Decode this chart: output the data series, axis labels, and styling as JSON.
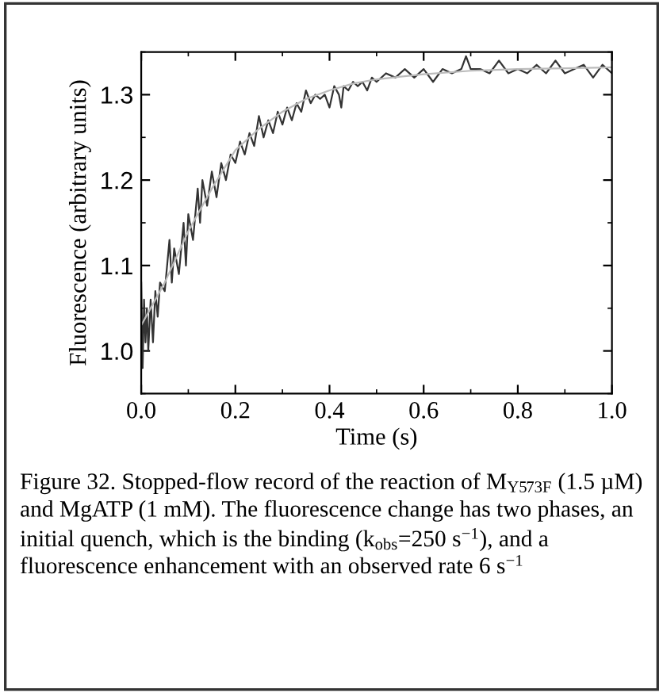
{
  "chart_data": {
    "type": "line",
    "xlabel": "Time (s)",
    "ylabel": "Fluorescence (arbitrary units)",
    "xlim": [
      0.0,
      1.0
    ],
    "xticks": [
      {
        "value": 0,
        "label": "0.0"
      },
      0.2,
      0.4,
      0.6,
      0.8,
      {
        "value": 1,
        "label": "1.0"
      }
    ],
    "ylim": [
      0.95,
      1.35
    ],
    "yticks": [
      {
        "value": 1,
        "label": "1.0"
      },
      1.1,
      1.2,
      1.3
    ],
    "grid": false,
    "legend": false,
    "marker": "none",
    "line_style": "solid",
    "series": [
      {
        "color": "#333333",
        "x": [
          0.0,
          0.003,
          0.006,
          0.009,
          0.012,
          0.015,
          0.02,
          0.025,
          0.03,
          0.035,
          0.04,
          0.05,
          0.06,
          0.065,
          0.07,
          0.08,
          0.09,
          0.095,
          0.1,
          0.11,
          0.12,
          0.125,
          0.13,
          0.14,
          0.15,
          0.16,
          0.17,
          0.18,
          0.19,
          0.2,
          0.21,
          0.22,
          0.23,
          0.24,
          0.25,
          0.26,
          0.27,
          0.28,
          0.29,
          0.3,
          0.31,
          0.32,
          0.33,
          0.34,
          0.35,
          0.36,
          0.37,
          0.38,
          0.39,
          0.4,
          0.41,
          0.42,
          0.425,
          0.43,
          0.44,
          0.45,
          0.46,
          0.47,
          0.48,
          0.49,
          0.5,
          0.52,
          0.54,
          0.56,
          0.58,
          0.6,
          0.62,
          0.64,
          0.66,
          0.68,
          0.69,
          0.7,
          0.72,
          0.74,
          0.76,
          0.78,
          0.8,
          0.82,
          0.84,
          0.86,
          0.88,
          0.9,
          0.92,
          0.94,
          0.96,
          0.98,
          1.0
        ],
        "values": [
          1.08,
          0.98,
          1.06,
          1.01,
          1.05,
          1.0,
          1.06,
          1.01,
          1.07,
          1.04,
          1.08,
          1.07,
          1.13,
          1.08,
          1.12,
          1.09,
          1.15,
          1.1,
          1.16,
          1.13,
          1.19,
          1.15,
          1.2,
          1.17,
          1.21,
          1.18,
          1.22,
          1.2,
          1.23,
          1.22,
          1.245,
          1.23,
          1.255,
          1.24,
          1.275,
          1.25,
          1.27,
          1.255,
          1.28,
          1.265,
          1.285,
          1.27,
          1.29,
          1.28,
          1.305,
          1.29,
          1.3,
          1.295,
          1.3,
          1.285,
          1.31,
          1.3,
          1.285,
          1.31,
          1.305,
          1.315,
          1.31,
          1.315,
          1.305,
          1.32,
          1.315,
          1.325,
          1.32,
          1.33,
          1.32,
          1.33,
          1.315,
          1.33,
          1.325,
          1.33,
          1.345,
          1.33,
          1.33,
          1.325,
          1.34,
          1.325,
          1.33,
          1.325,
          1.335,
          1.325,
          1.34,
          1.325,
          1.33,
          1.335,
          1.32,
          1.335,
          1.325
        ]
      },
      {
        "color": "#bbbbbb",
        "x": [
          0.0,
          0.05,
          0.1,
          0.15,
          0.2,
          0.25,
          0.3,
          0.35,
          0.4,
          0.45,
          0.5,
          0.6,
          0.7,
          0.8,
          0.9,
          1.0
        ],
        "values": [
          1.03,
          1.08,
          1.14,
          1.19,
          1.235,
          1.26,
          1.28,
          1.295,
          1.305,
          1.313,
          1.318,
          1.324,
          1.328,
          1.33,
          1.331,
          1.332
        ]
      }
    ],
    "annotations": [
      "Figure 32. Stopped-flow record of the reaction of M$_{Y573F}$ (1.5 µM) and MgATP (1 mM). The fluorescence change has two phases, an initial quench, which is the binding (k$_{obs}$=250 s$^{−1}$), and a fluorescence enhancement with an observed rate 6 s$^{−1}$"
    ]
  }
}
